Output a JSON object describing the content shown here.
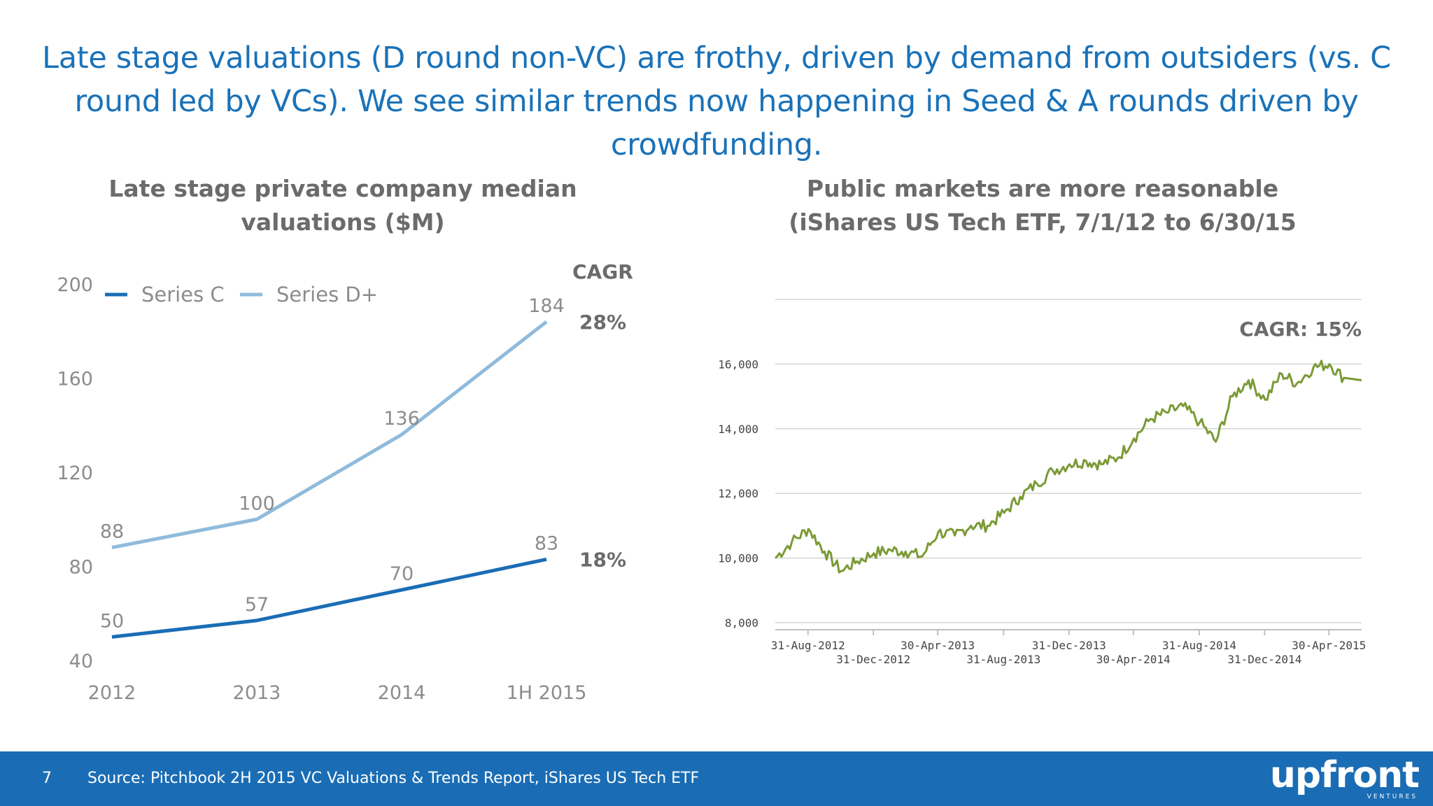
{
  "headline": "Late stage valuations (D round non-VC) are frothy, driven by demand from outsiders (vs. C round led by VCs). We see similar trends now happening in Seed & A rounds driven by crowdfunding.",
  "footer": {
    "page_number": "7",
    "source": "Source: Pitchbook 2H 2015 VC Valuations & Trends Report, iShares US Tech ETF",
    "logo": "upfront",
    "logo_sub": "VENTURES"
  },
  "chart_data": [
    {
      "type": "line",
      "title": "Late stage private company median valuations ($M)",
      "categories": [
        "2012",
        "2013",
        "2014",
        "1H 2015"
      ],
      "yticks": [
        40,
        80,
        120,
        160,
        200
      ],
      "ylim": [
        40,
        200
      ],
      "legend": "top-left",
      "grid": false,
      "cagr_header": "CAGR",
      "series": [
        {
          "name": "Series C",
          "values": [
            50,
            57,
            70,
            83
          ],
          "labels": [
            "50",
            "57",
            "70",
            "83"
          ],
          "color": "#1a6db5",
          "cagr": "18%"
        },
        {
          "name": "Series D+",
          "values": [
            88,
            100,
            136,
            184
          ],
          "labels": [
            "88",
            "100",
            "136",
            "184"
          ],
          "color": "#8fbbdc",
          "cagr": "28%"
        }
      ]
    },
    {
      "type": "line",
      "title": "Public markets are more reasonable (iShares US Tech ETF, 7/1/12 to 6/30/15",
      "annotation": "CAGR: 15%",
      "yticks": [
        "8,000",
        "10,000",
        "12,000",
        "14,000",
        "16,000"
      ],
      "ylim": [
        8000,
        18000
      ],
      "grid": true,
      "color": "#7b9a35",
      "xticks_top": [
        "31-Aug-2012",
        "30-Apr-2013",
        "31-Dec-2013",
        "31-Aug-2014",
        "30-Apr-2015"
      ],
      "xticks_bottom": [
        "31-Dec-2012",
        "31-Aug-2013",
        "30-Apr-2014",
        "31-Dec-2014"
      ],
      "x": [
        "2012-07",
        "2012-08",
        "2012-09",
        "2012-10",
        "2012-11",
        "2012-12",
        "2013-01",
        "2013-02",
        "2013-03",
        "2013-04",
        "2013-05",
        "2013-06",
        "2013-07",
        "2013-08",
        "2013-09",
        "2013-10",
        "2013-11",
        "2013-12",
        "2014-01",
        "2014-02",
        "2014-03",
        "2014-04",
        "2014-05",
        "2014-06",
        "2014-07",
        "2014-08",
        "2014-09",
        "2014-10",
        "2014-11",
        "2014-12",
        "2015-01",
        "2015-02",
        "2015-03",
        "2015-04",
        "2015-05",
        "2015-06"
      ],
      "values": [
        10000,
        10500,
        10900,
        10200,
        9600,
        9900,
        10150,
        10250,
        10200,
        10050,
        10800,
        10700,
        11000,
        11000,
        11400,
        11900,
        12300,
        12700,
        12900,
        13000,
        12900,
        13100,
        13700,
        14300,
        14500,
        14700,
        14200,
        13600,
        15000,
        15500,
        14900,
        15700,
        15400,
        15900,
        16000,
        15500
      ]
    }
  ]
}
